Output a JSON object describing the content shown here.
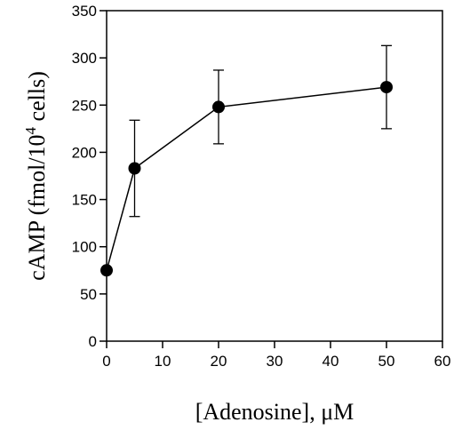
{
  "chart_data": {
    "type": "scatter",
    "connected": true,
    "xlabel": "[Adenosine], μM",
    "ylabel_main": "cAMP (fmol/10",
    "ylabel_sup": "4",
    "ylabel_end": " cells)",
    "xlim": [
      0,
      60
    ],
    "ylim": [
      0,
      350
    ],
    "xticks": [
      "0",
      "10",
      "20",
      "30",
      "40",
      "50",
      "60"
    ],
    "yticks": [
      "0",
      "50",
      "100",
      "150",
      "200",
      "250",
      "300",
      "350"
    ],
    "grid": false,
    "series": [
      {
        "x": [
          0,
          5,
          20,
          50
        ],
        "y": [
          75,
          183,
          248,
          269
        ],
        "err_low": [
          null,
          132,
          209,
          225
        ],
        "err_high": [
          null,
          234,
          287,
          313
        ]
      }
    ]
  }
}
